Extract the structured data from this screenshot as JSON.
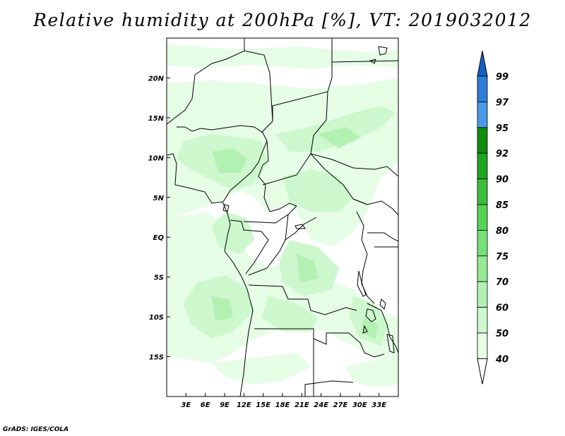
{
  "title": "Relative humidity at 200hPa [%], VT: 2019032012",
  "credit": "GrADS: IGES/COLA",
  "map": {
    "lon_range": [
      0,
      36
    ],
    "lat_range": [
      -20,
      25
    ],
    "lon_ticks": [
      {
        "value": 3,
        "label": "3E"
      },
      {
        "value": 6,
        "label": "6E"
      },
      {
        "value": 9,
        "label": "9E"
      },
      {
        "value": 12,
        "label": "12E"
      },
      {
        "value": 15,
        "label": "15E"
      },
      {
        "value": 18,
        "label": "18E"
      },
      {
        "value": 21,
        "label": "21E"
      },
      {
        "value": 24,
        "label": "24E"
      },
      {
        "value": 27,
        "label": "27E"
      },
      {
        "value": 30,
        "label": "30E"
      },
      {
        "value": 33,
        "label": "33E"
      }
    ],
    "lat_ticks": [
      {
        "value": 20,
        "label": "20N"
      },
      {
        "value": 15,
        "label": "15N"
      },
      {
        "value": 10,
        "label": "10N"
      },
      {
        "value": 5,
        "label": "5N"
      },
      {
        "value": 0,
        "label": "EQ"
      },
      {
        "value": -5,
        "label": "5S"
      },
      {
        "value": -10,
        "label": "10S"
      },
      {
        "value": -15,
        "label": "15S"
      }
    ]
  },
  "colorbar": {
    "levels": [
      "40",
      "50",
      "60",
      "70",
      "75",
      "80",
      "85",
      "90",
      "92",
      "95",
      "97",
      "99"
    ],
    "colors": [
      "#ffffff",
      "#e6fde6",
      "#cdf7cd",
      "#b3f1b3",
      "#96ea96",
      "#78e078",
      "#57d257",
      "#3cbe3c",
      "#20a520",
      "#108c10",
      "#4a9ae8",
      "#2d7cd8",
      "#1660c4"
    ]
  },
  "colors": {
    "shade_40_50": "#e6fde6",
    "shade_50_60": "#cdf7cd",
    "shade_60_70": "#b3f1b3",
    "border": "#000000"
  }
}
